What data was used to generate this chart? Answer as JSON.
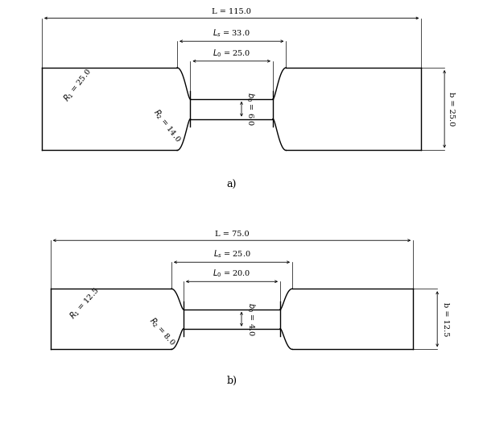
{
  "fig_width": 6.0,
  "fig_height": 5.26,
  "dpi": 100,
  "bg_color": "#ffffff",
  "line_color": "#000000",
  "line_width": 1.0,
  "font_size": 7.0,
  "label_font_size": 9,
  "a_specimen": {
    "L": 115.0,
    "Ls": 33.0,
    "L0": 25.0,
    "b": 25.0,
    "b0": 6.0,
    "R1": 25.0,
    "R2": 14.0
  },
  "b_specimen": {
    "L": 75.0,
    "Ls": 25.0,
    "L0": 20.0,
    "b": 12.5,
    "b0": 4.0,
    "R1": 12.5,
    "R2": 8.0
  }
}
